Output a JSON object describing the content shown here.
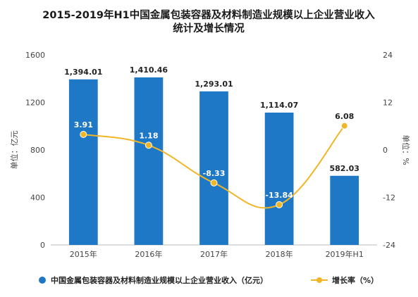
{
  "chart_data": {
    "type": "bar",
    "title_line1": "2015-2019年H1中国金属包装容器及材料制造业规模以上企业营业收入",
    "title_line2": "统计及增长情况",
    "categories": [
      "2015年",
      "2016年",
      "2017年",
      "2018年",
      "2019年H1"
    ],
    "series": [
      {
        "name": "中国金属包装容器及材料制造业规模以上企业营业收入（亿元）",
        "type": "bar",
        "axis": "left",
        "values": [
          1394.01,
          1410.46,
          1293.01,
          1114.07,
          582.03
        ],
        "labels": [
          "1,394.01",
          "1,410.46",
          "1,293.01",
          "1,114.07",
          "582.03"
        ],
        "color": "#1f78c6"
      },
      {
        "name": "增长率（%）",
        "type": "line",
        "axis": "right",
        "values": [
          3.91,
          1.18,
          -8.33,
          -13.84,
          6.08
        ],
        "labels": [
          "3.91",
          "1.18",
          "-8.33",
          "-13.84",
          "6.08"
        ],
        "color": "#f0b627"
      }
    ],
    "ylabel": "单位：亿元",
    "y2label": "单位：%",
    "ylim": [
      0,
      1600
    ],
    "yticks": [
      "0",
      "400",
      "800",
      "1200",
      "1600"
    ],
    "y2lim": [
      -24,
      24
    ],
    "y2ticks": [
      "-24",
      "-12",
      "0",
      "12",
      "24"
    ],
    "grid": false,
    "legend_position": "bottom"
  }
}
